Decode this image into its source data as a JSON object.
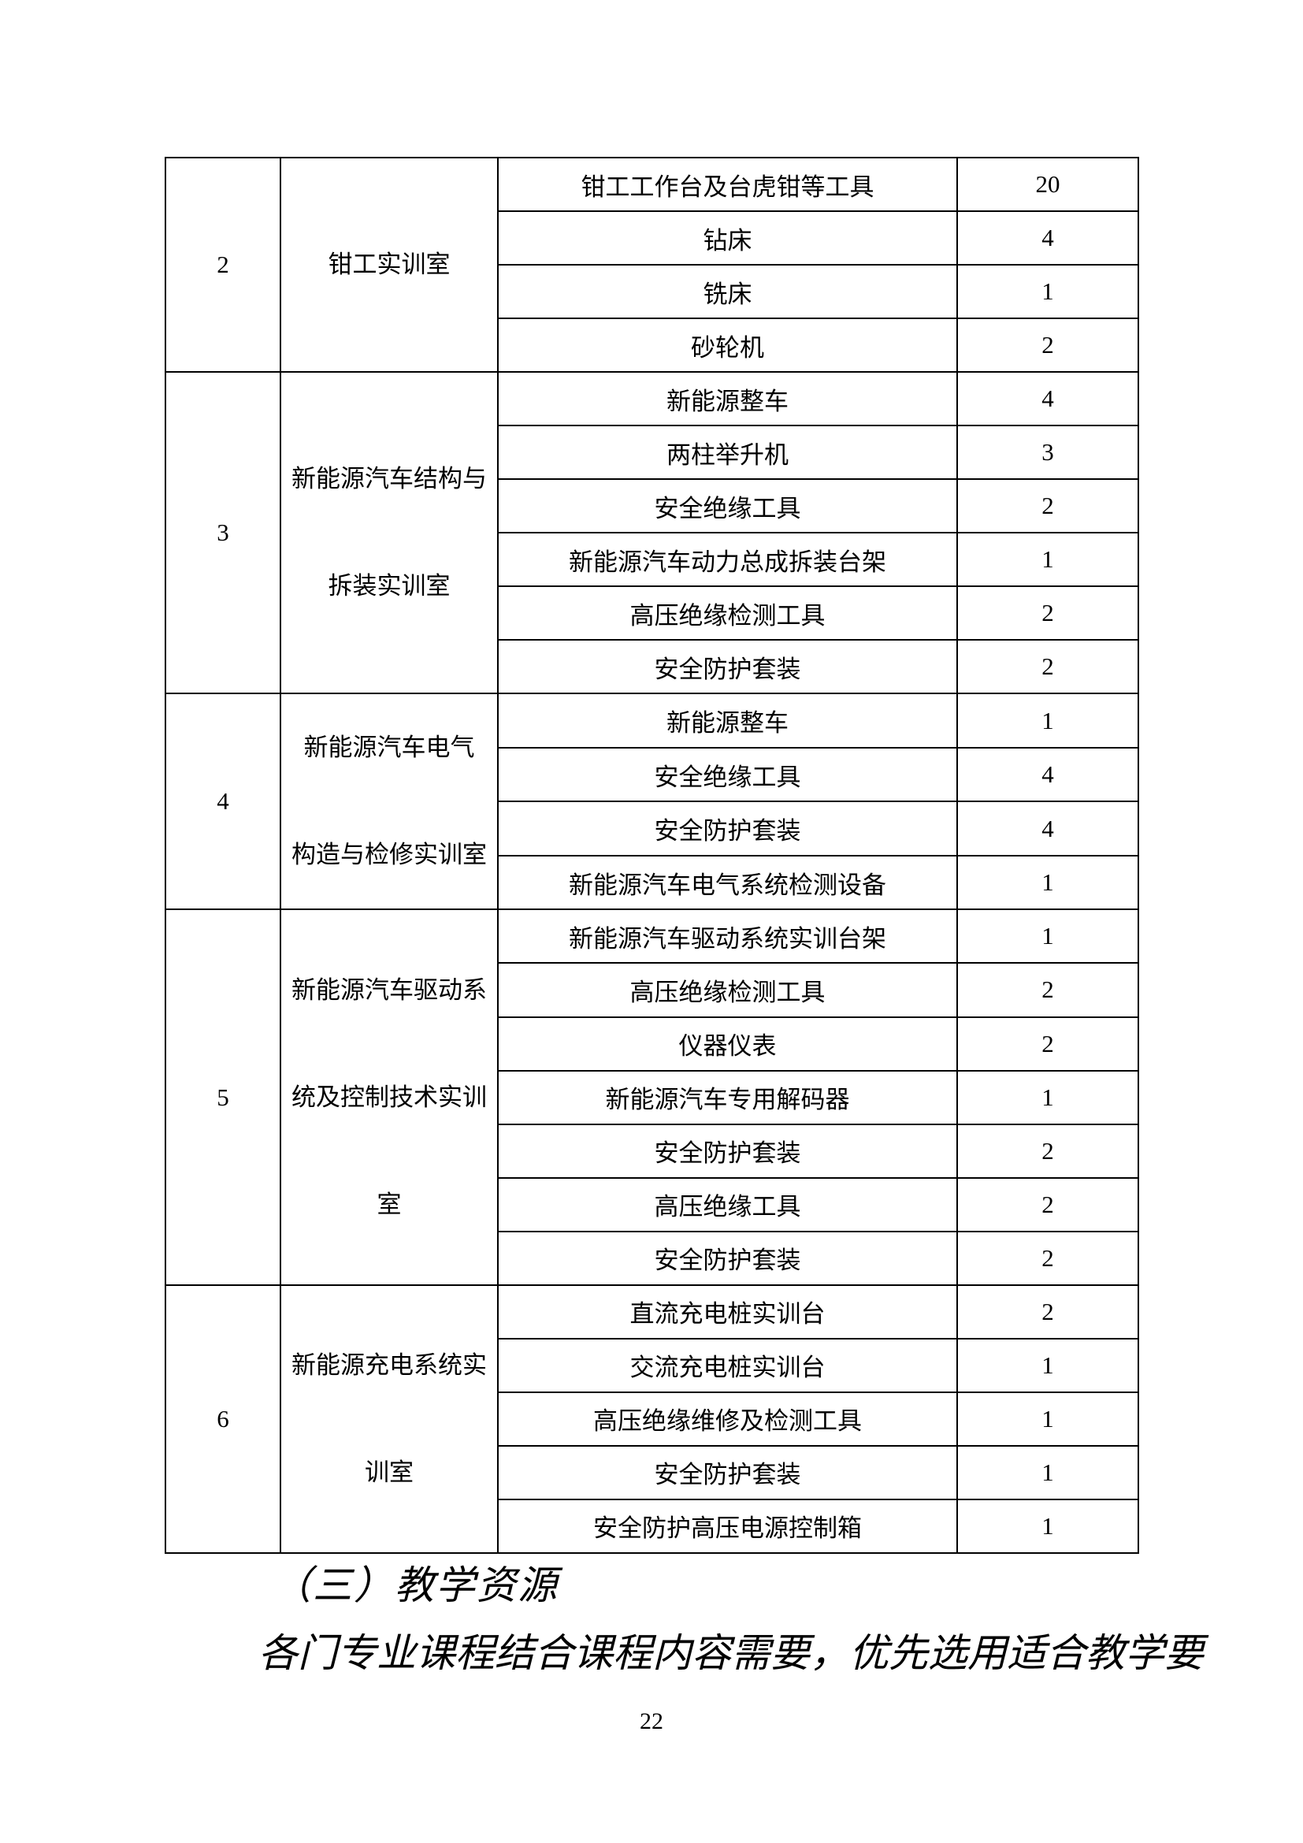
{
  "table": {
    "sections": [
      {
        "serial": "2",
        "room_lines": [
          "钳工实训室"
        ],
        "items": [
          {
            "name": "钳工工作台及台虎钳等工具",
            "qty": "20"
          },
          {
            "name": "钻床",
            "qty": "4"
          },
          {
            "name": "铣床",
            "qty": "1"
          },
          {
            "name": "砂轮机",
            "qty": "2"
          }
        ]
      },
      {
        "serial": "3",
        "room_lines": [
          "新能源汽车结构与",
          "拆装实训室"
        ],
        "items": [
          {
            "name": "新能源整车",
            "qty": "4"
          },
          {
            "name": "两柱举升机",
            "qty": "3"
          },
          {
            "name": "安全绝缘工具",
            "qty": "2"
          },
          {
            "name": "新能源汽车动力总成拆装台架",
            "qty": "1"
          },
          {
            "name": "高压绝缘检测工具",
            "qty": "2"
          },
          {
            "name": "安全防护套装",
            "qty": "2"
          }
        ]
      },
      {
        "serial": "4",
        "room_lines": [
          "新能源汽车电气",
          "构造与检修实训室"
        ],
        "items": [
          {
            "name": "新能源整车",
            "qty": "1"
          },
          {
            "name": "安全绝缘工具",
            "qty": "4"
          },
          {
            "name": "安全防护套装",
            "qty": "4"
          },
          {
            "name": "新能源汽车电气系统检测设备",
            "qty": "1"
          }
        ]
      },
      {
        "serial": "5",
        "room_lines": [
          "新能源汽车驱动系",
          "统及控制技术实训",
          "室"
        ],
        "items": [
          {
            "name": "新能源汽车驱动系统实训台架",
            "qty": "1"
          },
          {
            "name": "高压绝缘检测工具",
            "qty": "2"
          },
          {
            "name": "仪器仪表",
            "qty": "2"
          },
          {
            "name": "新能源汽车专用解码器",
            "qty": "1"
          },
          {
            "name": "安全防护套装",
            "qty": "2"
          },
          {
            "name": "高压绝缘工具",
            "qty": "2"
          },
          {
            "name": "安全防护套装",
            "qty": "2"
          }
        ]
      },
      {
        "serial": "6",
        "room_lines": [
          "新能源充电系统实",
          "训室"
        ],
        "items": [
          {
            "name": "直流充电桩实训台",
            "qty": "2"
          },
          {
            "name": "交流充电桩实训台",
            "qty": "1"
          },
          {
            "name": "高压绝缘维修及检测工具",
            "qty": "1"
          },
          {
            "name": "安全防护套装",
            "qty": "1"
          },
          {
            "name": "安全防护高压电源控制箱",
            "qty": "1"
          }
        ]
      }
    ]
  },
  "footer": {
    "heading": "（三）教学资源",
    "paragraph": "各门专业课程结合课程内容需要，优先选用适合教学要"
  },
  "page": {
    "number": "22"
  }
}
